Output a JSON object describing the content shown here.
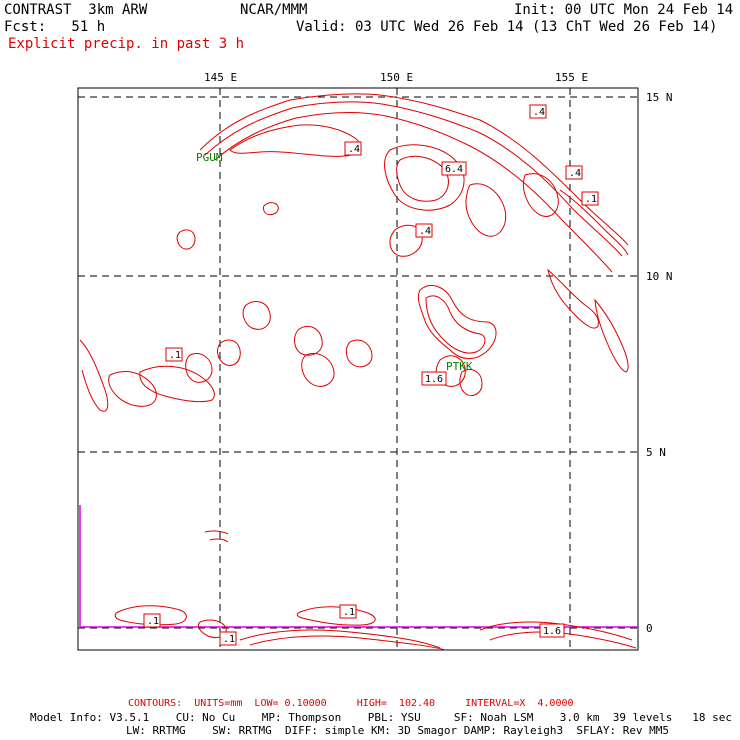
{
  "header": {
    "left_line1": "CONTRAST  3km ARW",
    "center_line1": "NCAR/MMM",
    "right_line1": "Init: 00 UTC Mon 24 Feb 14",
    "left_line2": "Fcst:   51 h",
    "right_line2": "Valid: 03 UTC Wed 26 Feb 14 (13 ChT Wed 26 Feb 14)",
    "field_title": "Explicit precip. in past 3 h"
  },
  "axes": {
    "lon_labels": [
      "145 E",
      "150 E",
      "155 E"
    ],
    "lat_labels": [
      "15 N",
      "10 N",
      "5 N",
      "0"
    ]
  },
  "stations": [
    "PGUM",
    "PTKK"
  ],
  "contour_labels": [
    ".4",
    ".4",
    "6.4",
    ".4",
    ".4",
    ".1",
    ".1",
    "1.6",
    ".1",
    ".1",
    ".1",
    "1.6"
  ],
  "footer": {
    "contours_line": "CONTOURS:  UNITS=mm  LOW= 0.10000     HIGH=  102.40     INTERVAL=X  4.0000",
    "model_line1": "Model Info: V3.5.1    CU: No Cu    MP: Thompson    PBL: YSU     SF: Noah LSM    3.0 km  39 levels   18 sec",
    "model_line2": "LW: RRTMG    SW: RRTMG  DIFF: simple KM: 3D Smagor DAMP: Rayleigh3  SFLAY: Rev MM5"
  },
  "colors": {
    "contour": "#e00000",
    "station": "#008000",
    "magenta_line": "#e000e0",
    "frame": "#000000"
  }
}
